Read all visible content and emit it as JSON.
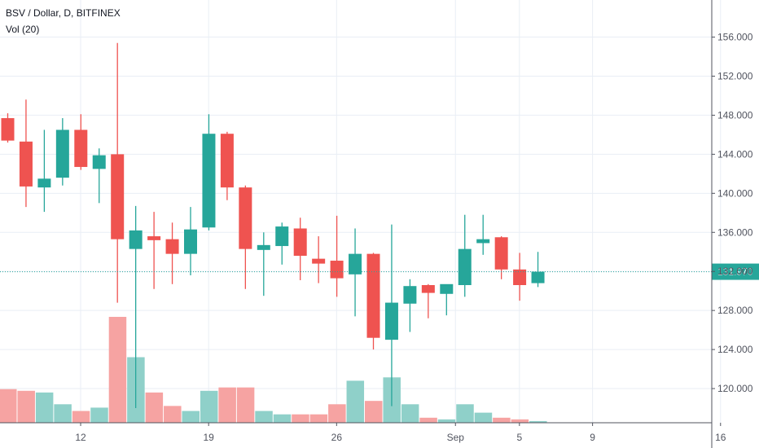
{
  "header": {
    "title": "BSV / Dollar, D, BITFINEX",
    "volume_label": "Vol (20)"
  },
  "colors": {
    "up": "#26a69a",
    "down": "#ef5350",
    "up_volume": "#8fd0c9",
    "down_volume": "#f6a3a2",
    "grid": "#e9eef5",
    "axis": "#50535e",
    "last_price_badge": "#26a69a"
  },
  "chart_data": {
    "type": "candlestick",
    "symbol": "BSV / Dollar",
    "interval": "D",
    "exchange": "BITFINEX",
    "y_axis": {
      "ticks": [
        "156.000",
        "152.000",
        "148.000",
        "144.000",
        "140.000",
        "136.000",
        "132.000",
        "128.000",
        "124.000",
        "120.000"
      ],
      "range": [
        116.5,
        159.8
      ]
    },
    "x_axis": {
      "tick_labels": [
        "12",
        "19",
        "26",
        "Sep",
        "5",
        "9",
        "16"
      ]
    },
    "last_price": "131.970",
    "grid": true,
    "candles": [
      {
        "date": "Aug 7",
        "open": 147.7,
        "high": 148.2,
        "low": 145.2,
        "close": 145.4
      },
      {
        "date": "Aug 8",
        "open": 145.3,
        "high": 149.6,
        "low": 138.6,
        "close": 140.7
      },
      {
        "date": "Aug 9",
        "open": 140.6,
        "high": 146.5,
        "low": 138.1,
        "close": 141.5
      },
      {
        "date": "Aug 10",
        "open": 141.6,
        "high": 147.7,
        "low": 140.8,
        "close": 146.5
      },
      {
        "date": "Aug 11",
        "open": 146.5,
        "high": 148.1,
        "low": 142.4,
        "close": 142.7
      },
      {
        "date": "Aug 12",
        "open": 142.5,
        "high": 144.6,
        "low": 139.0,
        "close": 143.9
      },
      {
        "date": "Aug 13",
        "open": 144.0,
        "high": 155.4,
        "low": 128.8,
        "close": 135.3
      },
      {
        "date": "Aug 14",
        "open": 134.3,
        "high": 138.7,
        "low": 118.0,
        "close": 136.2
      },
      {
        "date": "Aug 15",
        "open": 135.6,
        "high": 138.1,
        "low": 130.2,
        "close": 135.2
      },
      {
        "date": "Aug 16",
        "open": 135.3,
        "high": 137.0,
        "low": 130.7,
        "close": 133.8
      },
      {
        "date": "Aug 17",
        "open": 133.8,
        "high": 138.6,
        "low": 131.6,
        "close": 136.3
      },
      {
        "date": "Aug 18",
        "open": 136.5,
        "high": 148.1,
        "low": 136.2,
        "close": 146.1
      },
      {
        "date": "Aug 19",
        "open": 146.1,
        "high": 146.3,
        "low": 139.3,
        "close": 140.6
      },
      {
        "date": "Aug 20",
        "open": 140.6,
        "high": 140.8,
        "low": 130.2,
        "close": 134.3
      },
      {
        "date": "Aug 21",
        "open": 134.2,
        "high": 136.0,
        "low": 129.5,
        "close": 134.7
      },
      {
        "date": "Aug 22",
        "open": 134.6,
        "high": 137.0,
        "low": 132.7,
        "close": 136.6
      },
      {
        "date": "Aug 23",
        "open": 136.4,
        "high": 137.5,
        "low": 131.1,
        "close": 133.6
      },
      {
        "date": "Aug 24",
        "open": 133.3,
        "high": 135.6,
        "low": 130.8,
        "close": 132.8
      },
      {
        "date": "Aug 25",
        "open": 133.1,
        "high": 137.7,
        "low": 129.4,
        "close": 131.3
      },
      {
        "date": "Aug 26",
        "open": 131.7,
        "high": 136.4,
        "low": 127.4,
        "close": 133.8
      },
      {
        "date": "Aug 27",
        "open": 133.8,
        "high": 133.9,
        "low": 124.0,
        "close": 125.2
      },
      {
        "date": "Aug 28",
        "open": 125.0,
        "high": 136.8,
        "low": 118.2,
        "close": 128.8
      },
      {
        "date": "Aug 29",
        "open": 128.7,
        "high": 131.2,
        "low": 125.8,
        "close": 130.5
      },
      {
        "date": "Aug 30",
        "open": 130.6,
        "high": 130.7,
        "low": 127.2,
        "close": 129.8
      },
      {
        "date": "Aug 31",
        "open": 129.7,
        "high": 130.6,
        "low": 127.5,
        "close": 130.7
      },
      {
        "date": "Sep 1",
        "open": 130.6,
        "high": 137.8,
        "low": 129.4,
        "close": 134.3
      },
      {
        "date": "Sep 2",
        "open": 134.9,
        "high": 137.8,
        "low": 133.7,
        "close": 135.3
      },
      {
        "date": "Sep 3",
        "open": 135.5,
        "high": 135.6,
        "low": 131.2,
        "close": 132.2
      },
      {
        "date": "Sep 4",
        "open": 132.2,
        "high": 133.9,
        "low": 129.0,
        "close": 130.6
      },
      {
        "date": "Sep 5",
        "open": 130.8,
        "high": 134.0,
        "low": 130.4,
        "close": 131.97
      }
    ],
    "volume": {
      "label": "Vol (20)",
      "values": [
        20,
        19,
        18,
        11,
        7,
        9,
        63,
        39,
        18,
        10,
        7,
        19,
        21,
        21,
        7,
        5,
        5,
        5,
        11,
        25,
        13,
        27,
        11,
        3,
        2,
        11,
        6,
        3,
        2,
        1
      ]
    }
  }
}
